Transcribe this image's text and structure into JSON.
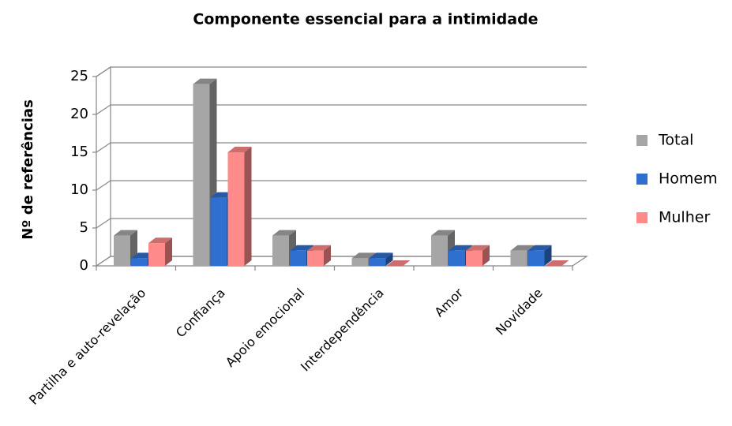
{
  "chart_data": {
    "type": "bar3d",
    "title": "Componente essencial para a intimidade",
    "y_label": "Nº de referências",
    "categories": [
      "Partilha e auto-revelação",
      "Confiança",
      "Apoio emocional",
      "Interdependência",
      "Amor",
      "Novidade"
    ],
    "series": [
      {
        "name": "Total",
        "color": "#a6a6a6",
        "values": [
          4,
          24,
          4,
          1,
          4,
          2
        ]
      },
      {
        "name": "Homem",
        "color": "#2f6fcf",
        "values": [
          1,
          9,
          2,
          1,
          2,
          2
        ]
      },
      {
        "name": "Mulher",
        "color": "#ff8a8a",
        "values": [
          3,
          15,
          2,
          0,
          2,
          0
        ]
      }
    ],
    "ylim": [
      0,
      25
    ],
    "yticks": [
      0,
      5,
      10,
      15,
      20,
      25
    ],
    "grid": true,
    "legend": "right"
  }
}
